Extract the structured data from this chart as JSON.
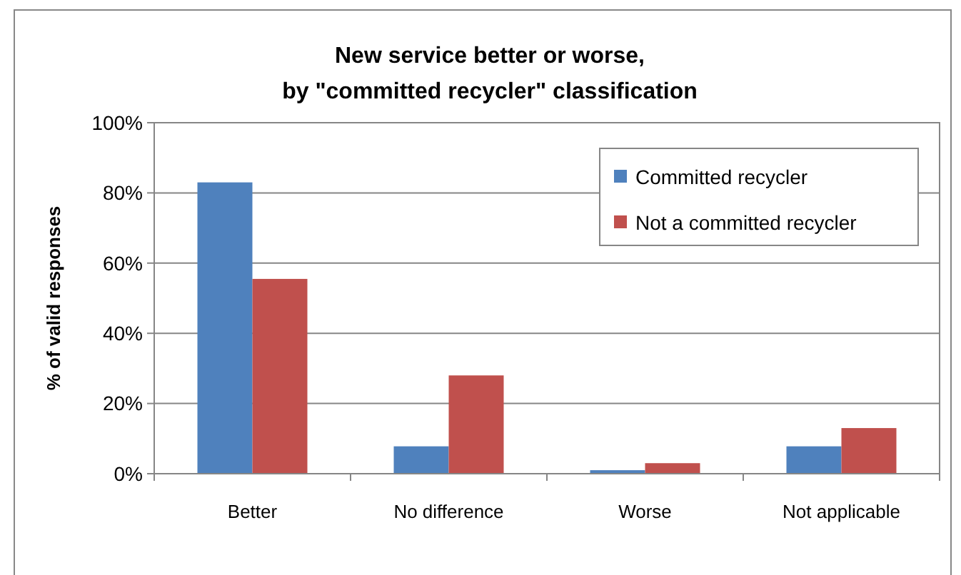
{
  "chart_data": {
    "type": "bar",
    "title": "New service better or worse,\nby \"committed recycler\" classification",
    "ylabel": "% of valid  responses",
    "categories": [
      "Better",
      "No difference",
      "Worse",
      "Not applicable"
    ],
    "series": [
      {
        "name": "Committed recycler",
        "color": "#4f81bd",
        "values": [
          83,
          7.8,
          1,
          7.8
        ]
      },
      {
        "name": "Not a committed recycler",
        "color": "#c0504d",
        "values": [
          55.5,
          28,
          3,
          13
        ]
      }
    ],
    "ylim": [
      0,
      100
    ],
    "yticks": [
      {
        "value": 0,
        "label": "0%"
      },
      {
        "value": 20,
        "label": "20%"
      },
      {
        "value": 40,
        "label": "40%"
      },
      {
        "value": 60,
        "label": "60%"
      },
      {
        "value": 80,
        "label": "80%"
      },
      {
        "value": 100,
        "label": "100%"
      }
    ],
    "grid": "y",
    "legend": "top right"
  }
}
